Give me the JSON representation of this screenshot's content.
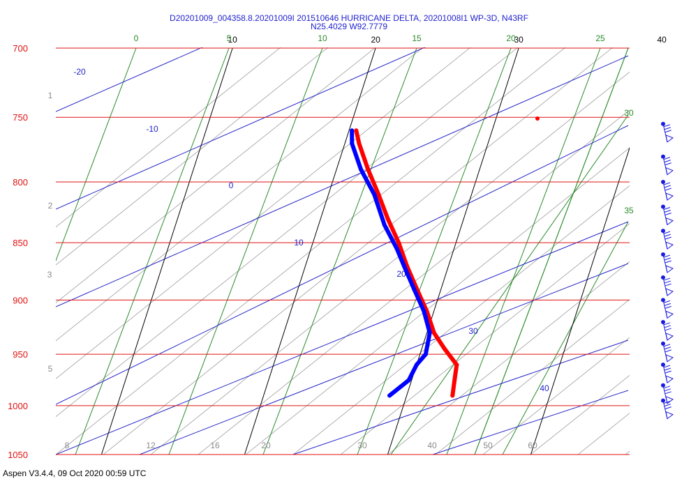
{
  "header": {
    "title_line1": "D20201009_004358.8.20201009I 201510646 HURRICANE DELTA, 20201008I1 WP-3D, N43RF",
    "title_line2": "N25.4029 W92.7779"
  },
  "footer": {
    "text": "Aspen V3.4.4, 09 Oct 2020  00:59 UTC"
  },
  "colors": {
    "isobar": "#e01010",
    "isotherm": "#000000",
    "dry_adiabat": "#2a8a2a",
    "moist_adiabat": "#2323c8",
    "mixing_ratio": "#9a9a9a",
    "temperature_trace": "#ff0000",
    "dewpoint_trace": "#0000ff",
    "wind_barb": "#1a1ae0"
  },
  "chart_data": {
    "type": "scatter",
    "subtype": "skew-T log-P sounding",
    "title": "D20201009_004358.8.20201009I 201510646 HURRICANE DELTA, 20201008I1 WP-3D, N43RF",
    "subtitle": "N25.4029 W92.7779",
    "y_axis": {
      "quantity": "pressure",
      "scale": "log",
      "inverted": true,
      "range": [
        1050,
        700
      ],
      "tick_labels": [
        "700",
        "750",
        "800",
        "850",
        "900",
        "950",
        "1000",
        "1050"
      ]
    },
    "isotherm_labels": [
      "10",
      "20",
      "30",
      "40"
    ],
    "dry_adiabat_labels": [
      "0",
      "5",
      "10",
      "15",
      "20",
      "25",
      "30",
      "35"
    ],
    "moist_adiabat_labels": [
      "-20",
      "-10",
      "0",
      "10",
      "20",
      "30",
      "40"
    ],
    "mixing_ratio_labels": [
      "8",
      "12",
      "16",
      "20",
      "30",
      "40",
      "50",
      "60"
    ],
    "height_labels": [
      "1",
      "2",
      "3",
      "5"
    ],
    "grid": true,
    "series": [
      {
        "quantity": "temperature",
        "color": "#ff0000",
        "points": [
          {
            "p": 990,
            "x": 33.2
          },
          {
            "p": 975,
            "x": 33.0
          },
          {
            "p": 960,
            "x": 32.8
          },
          {
            "p": 945,
            "x": 31.6
          },
          {
            "p": 930,
            "x": 30.5
          },
          {
            "p": 910,
            "x": 29.5
          },
          {
            "p": 890,
            "x": 28.3
          },
          {
            "p": 870,
            "x": 27.1
          },
          {
            "p": 850,
            "x": 26.0
          },
          {
            "p": 830,
            "x": 24.7
          },
          {
            "p": 810,
            "x": 23.5
          },
          {
            "p": 790,
            "x": 22.2
          },
          {
            "p": 770,
            "x": 21.0
          },
          {
            "p": 760,
            "x": 20.5
          }
        ]
      },
      {
        "quantity": "dewpoint",
        "color": "#0000ff",
        "points": [
          {
            "p": 990,
            "x": 28.8
          },
          {
            "p": 975,
            "x": 29.8
          },
          {
            "p": 960,
            "x": 30.0
          },
          {
            "p": 950,
            "x": 30.4
          },
          {
            "p": 930,
            "x": 30.2
          },
          {
            "p": 910,
            "x": 29.3
          },
          {
            "p": 890,
            "x": 28.1
          },
          {
            "p": 870,
            "x": 26.9
          },
          {
            "p": 855,
            "x": 26.0
          },
          {
            "p": 835,
            "x": 24.6
          },
          {
            "p": 810,
            "x": 23.2
          },
          {
            "p": 790,
            "x": 21.7
          },
          {
            "p": 770,
            "x": 20.5
          },
          {
            "p": 760,
            "x": 20.2
          }
        ]
      }
    ],
    "wind_barbs": [
      {
        "p": 755,
        "dir_deg": 340,
        "speed_kt": 55
      },
      {
        "p": 780,
        "dir_deg": 345,
        "speed_kt": 55
      },
      {
        "p": 800,
        "dir_deg": 345,
        "speed_kt": 55
      },
      {
        "p": 820,
        "dir_deg": 345,
        "speed_kt": 60
      },
      {
        "p": 840,
        "dir_deg": 345,
        "speed_kt": 60
      },
      {
        "p": 860,
        "dir_deg": 345,
        "speed_kt": 60
      },
      {
        "p": 880,
        "dir_deg": 345,
        "speed_kt": 60
      },
      {
        "p": 900,
        "dir_deg": 345,
        "speed_kt": 60
      },
      {
        "p": 920,
        "dir_deg": 345,
        "speed_kt": 60
      },
      {
        "p": 940,
        "dir_deg": 345,
        "speed_kt": 60
      },
      {
        "p": 960,
        "dir_deg": 345,
        "speed_kt": 55
      },
      {
        "p": 980,
        "dir_deg": 350,
        "speed_kt": 55
      },
      {
        "p": 995,
        "dir_deg": 330,
        "speed_kt": 50
      }
    ]
  }
}
